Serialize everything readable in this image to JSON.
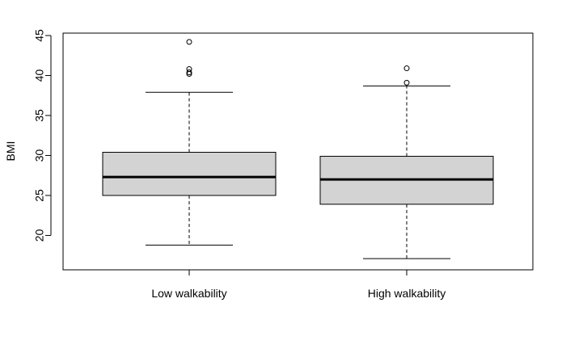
{
  "chart_data": {
    "type": "boxplot",
    "title": "",
    "xlabel": "",
    "ylabel": "BMI",
    "ylim": [
      15.7,
      45.3
    ],
    "yticks": [
      20,
      25,
      30,
      35,
      40,
      45
    ],
    "ytick_labels": [
      "20",
      "25",
      "30",
      "35",
      "40",
      "45"
    ],
    "grid": false,
    "legend": "none",
    "categories": [
      "Low walkability",
      "High walkability"
    ],
    "box_fill": "#d3d3d3",
    "boxes": [
      {
        "name": "Low walkability",
        "whisker_low": 18.8,
        "q1": 25.0,
        "median": 27.3,
        "q3": 30.4,
        "whisker_high": 37.9,
        "outliers": [
          44.2,
          40.8,
          40.4,
          40.2
        ]
      },
      {
        "name": "High walkability",
        "whisker_low": 17.1,
        "q1": 23.9,
        "median": 27.0,
        "q3": 29.9,
        "whisker_high": 38.7,
        "outliers": [
          40.9,
          39.1
        ]
      }
    ]
  }
}
